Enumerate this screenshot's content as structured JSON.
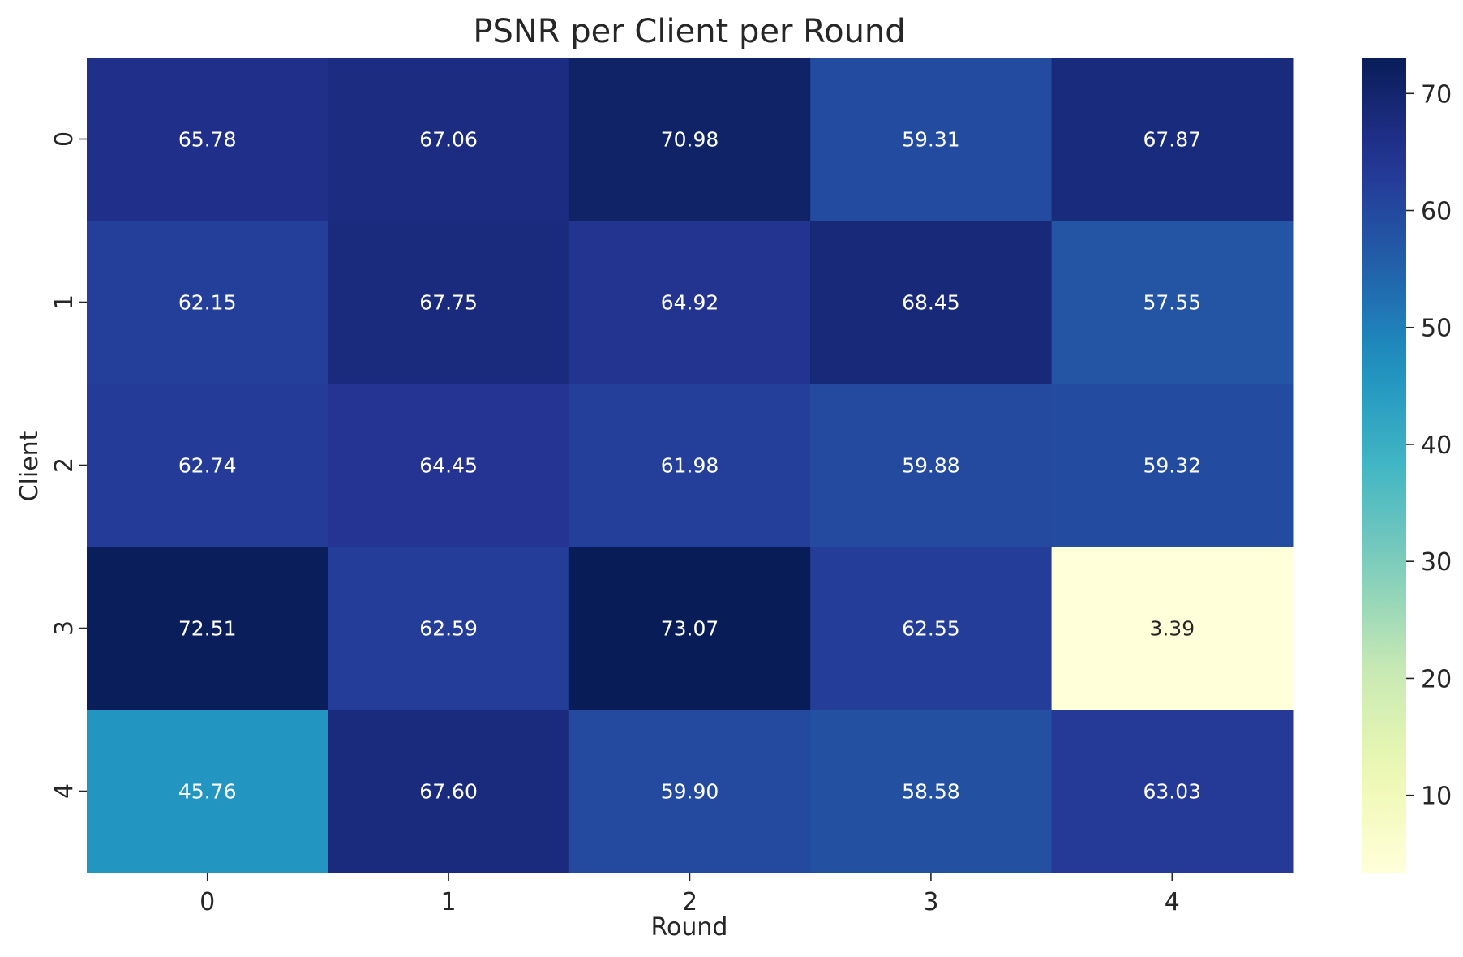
{
  "chart_data": {
    "type": "heatmap",
    "title": "PSNR per Client per Round",
    "xlabel": "Round",
    "ylabel": "Client",
    "x_categories": [
      "0",
      "1",
      "2",
      "3",
      "4"
    ],
    "y_categories": [
      "0",
      "1",
      "2",
      "3",
      "4"
    ],
    "values": [
      [
        65.78,
        67.06,
        70.98,
        59.31,
        67.87
      ],
      [
        62.15,
        67.75,
        64.92,
        68.45,
        57.55
      ],
      [
        62.74,
        64.45,
        61.98,
        59.88,
        59.32
      ],
      [
        72.51,
        62.59,
        73.07,
        62.55,
        3.39
      ],
      [
        45.76,
        67.6,
        59.9,
        58.58,
        63.03
      ]
    ],
    "value_format": "2 decimals",
    "colormap": "YlGnBu",
    "colorbar": {
      "min": 3.39,
      "max": 73.07,
      "ticks": [
        10,
        20,
        30,
        40,
        50,
        60,
        70
      ]
    },
    "grid": false
  }
}
